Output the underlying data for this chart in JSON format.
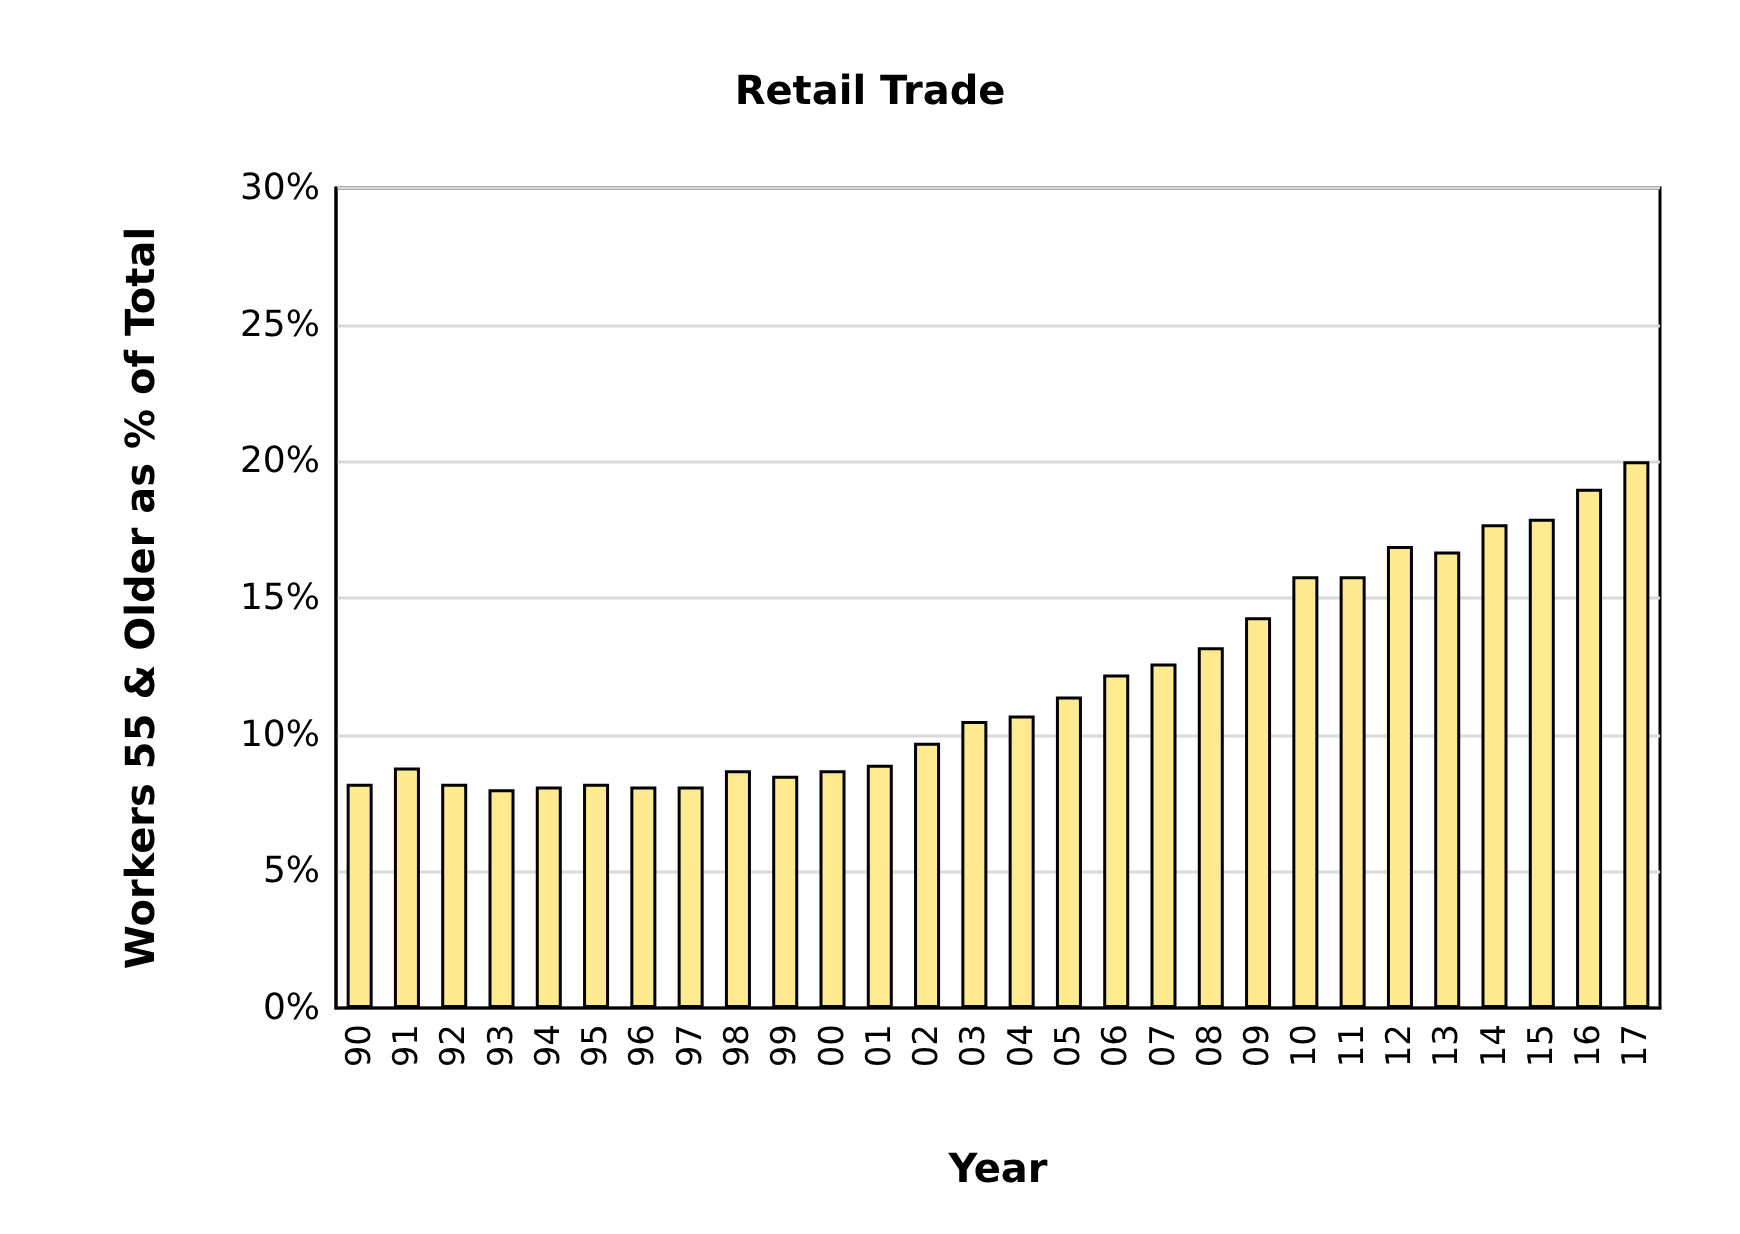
{
  "chart_data": {
    "type": "bar",
    "title": "Retail Trade",
    "xlabel": "Year",
    "ylabel": "Workers 55 & Older as % of Total",
    "categories": [
      "90",
      "91",
      "92",
      "93",
      "94",
      "95",
      "96",
      "97",
      "98",
      "99",
      "00",
      "01",
      "02",
      "03",
      "04",
      "05",
      "06",
      "07",
      "08",
      "09",
      "10",
      "11",
      "12",
      "13",
      "14",
      "15",
      "16",
      "17"
    ],
    "values": [
      8.2,
      8.8,
      8.2,
      8.0,
      8.1,
      8.2,
      8.1,
      8.1,
      8.7,
      8.5,
      8.7,
      8.9,
      9.7,
      10.5,
      10.7,
      11.4,
      12.2,
      12.6,
      13.2,
      14.3,
      15.8,
      15.8,
      16.9,
      16.7,
      17.7,
      17.9,
      19.0,
      20.0
    ],
    "color": "#ffea90",
    "ylim": [
      0,
      30
    ],
    "yticks": [
      {
        "value": 0,
        "label": "0%"
      },
      {
        "value": 5,
        "label": "5%"
      },
      {
        "value": 10,
        "label": "10%"
      },
      {
        "value": 15,
        "label": "15%"
      },
      {
        "value": 20,
        "label": "20%"
      },
      {
        "value": 25,
        "label": "25%"
      },
      {
        "value": 30,
        "label": "30%"
      }
    ],
    "grid": "y"
  }
}
